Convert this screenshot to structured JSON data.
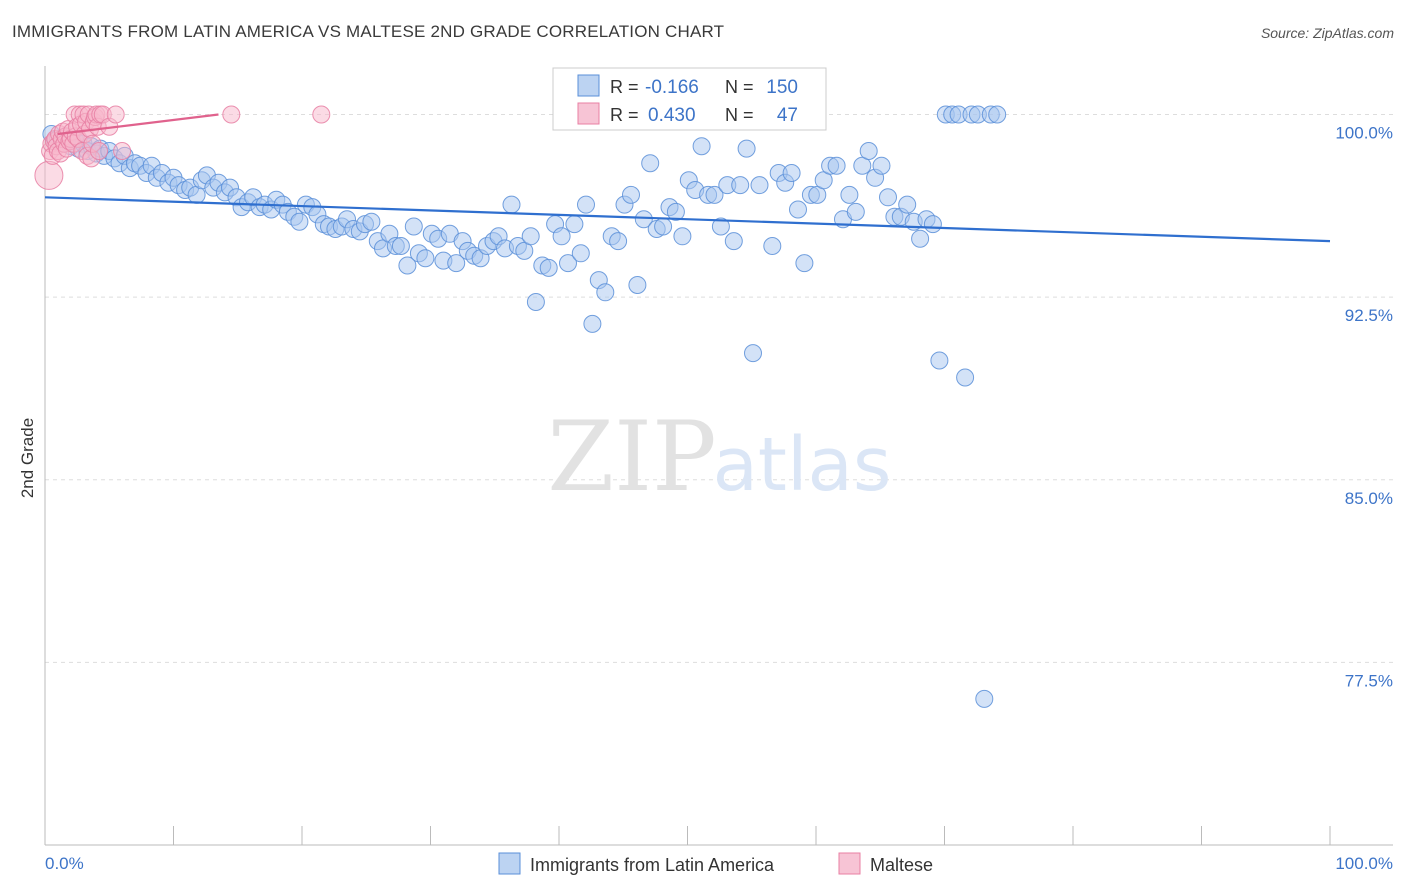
{
  "title": "IMMIGRANTS FROM LATIN AMERICA VS MALTESE 2ND GRADE CORRELATION CHART",
  "source": "Source: ZipAtlas.com",
  "watermark": {
    "zip": "ZIP",
    "atlas": "atlas"
  },
  "chart_data": {
    "type": "scatter",
    "title": "IMMIGRANTS FROM LATIN AMERICA VS MALTESE 2ND GRADE CORRELATION CHART",
    "xlabel": "",
    "ylabel": "2nd Grade",
    "xlim": [
      0,
      100
    ],
    "ylim": [
      70.0,
      101.5
    ],
    "x_tick_labels": [
      {
        "value": 0,
        "label": "0.0%"
      },
      {
        "value": 100,
        "label": "100.0%"
      }
    ],
    "y_tick_labels": [
      {
        "value": 100.0,
        "label": "100.0%"
      },
      {
        "value": 92.5,
        "label": "92.5%"
      },
      {
        "value": 85.0,
        "label": "85.0%"
      },
      {
        "value": 77.5,
        "label": "77.5%"
      }
    ],
    "grid": true,
    "legend_position": "bottom-center",
    "stats": [
      {
        "r_label": "R =",
        "r": "-0.166",
        "n_label": "N =",
        "n": "150"
      },
      {
        "r_label": "R =",
        "r": "0.430",
        "n_label": "N =",
        "n": "47"
      }
    ],
    "series": [
      {
        "name": "Immigrants from Latin America",
        "fill": "#a8c6ef",
        "stroke": "#5a8fd8",
        "line_color": "#2f6fcf",
        "trend": {
          "x": [
            0,
            100
          ],
          "y": [
            96.6,
            94.8
          ]
        },
        "points": [
          [
            0.5,
            99.2
          ],
          [
            0.8,
            98.9
          ],
          [
            1.0,
            99.0
          ],
          [
            1.3,
            98.8
          ],
          [
            1.6,
            99.1
          ],
          [
            2.0,
            98.7
          ],
          [
            2.3,
            99.0
          ],
          [
            2.6,
            98.6
          ],
          [
            3.0,
            98.8
          ],
          [
            3.3,
            98.5
          ],
          [
            3.6,
            98.7
          ],
          [
            4.0,
            98.4
          ],
          [
            4.3,
            98.6
          ],
          [
            4.6,
            98.3
          ],
          [
            5.0,
            98.5
          ],
          [
            5.4,
            98.2
          ],
          [
            5.8,
            98.0
          ],
          [
            6.2,
            98.3
          ],
          [
            6.6,
            97.8
          ],
          [
            7.0,
            98.0
          ],
          [
            7.4,
            97.9
          ],
          [
            7.9,
            97.6
          ],
          [
            8.3,
            97.9
          ],
          [
            8.7,
            97.4
          ],
          [
            9.1,
            97.6
          ],
          [
            9.6,
            97.2
          ],
          [
            10.0,
            97.4
          ],
          [
            10.4,
            97.1
          ],
          [
            10.9,
            96.9
          ],
          [
            11.3,
            97.0
          ],
          [
            11.8,
            96.7
          ],
          [
            12.2,
            97.3
          ],
          [
            12.6,
            97.5
          ],
          [
            13.1,
            97.0
          ],
          [
            13.5,
            97.2
          ],
          [
            14.0,
            96.8
          ],
          [
            14.4,
            97.0
          ],
          [
            14.9,
            96.6
          ],
          [
            15.3,
            96.2
          ],
          [
            15.8,
            96.4
          ],
          [
            16.2,
            96.6
          ],
          [
            16.7,
            96.2
          ],
          [
            17.1,
            96.3
          ],
          [
            17.6,
            96.1
          ],
          [
            18.0,
            96.5
          ],
          [
            18.5,
            96.3
          ],
          [
            18.9,
            96.0
          ],
          [
            19.4,
            95.8
          ],
          [
            19.8,
            95.6
          ],
          [
            20.3,
            96.3
          ],
          [
            20.8,
            96.2
          ],
          [
            21.2,
            95.9
          ],
          [
            21.7,
            95.5
          ],
          [
            22.1,
            95.4
          ],
          [
            22.6,
            95.3
          ],
          [
            23.1,
            95.4
          ],
          [
            23.5,
            95.7
          ],
          [
            24.0,
            95.3
          ],
          [
            24.5,
            95.2
          ],
          [
            24.9,
            95.5
          ],
          [
            25.4,
            95.6
          ],
          [
            25.9,
            94.8
          ],
          [
            26.3,
            94.5
          ],
          [
            26.8,
            95.1
          ],
          [
            27.3,
            94.6
          ],
          [
            27.7,
            94.6
          ],
          [
            28.2,
            93.8
          ],
          [
            28.7,
            95.4
          ],
          [
            29.1,
            94.3
          ],
          [
            29.6,
            94.1
          ],
          [
            30.1,
            95.1
          ],
          [
            30.6,
            94.9
          ],
          [
            31.0,
            94.0
          ],
          [
            31.5,
            95.1
          ],
          [
            32.0,
            93.9
          ],
          [
            32.5,
            94.8
          ],
          [
            32.9,
            94.4
          ],
          [
            33.4,
            94.2
          ],
          [
            33.9,
            94.1
          ],
          [
            34.4,
            94.6
          ],
          [
            34.9,
            94.8
          ],
          [
            35.3,
            95.0
          ],
          [
            35.8,
            94.5
          ],
          [
            36.3,
            96.3
          ],
          [
            36.8,
            94.6
          ],
          [
            37.3,
            94.4
          ],
          [
            37.8,
            95.0
          ],
          [
            38.2,
            92.3
          ],
          [
            38.7,
            93.8
          ],
          [
            39.2,
            93.7
          ],
          [
            39.7,
            95.5
          ],
          [
            40.2,
            95.0
          ],
          [
            40.7,
            93.9
          ],
          [
            41.2,
            95.5
          ],
          [
            41.7,
            94.3
          ],
          [
            42.1,
            96.3
          ],
          [
            42.6,
            91.4
          ],
          [
            43.1,
            93.2
          ],
          [
            43.6,
            92.7
          ],
          [
            44.1,
            95.0
          ],
          [
            44.6,
            94.8
          ],
          [
            45.1,
            96.3
          ],
          [
            45.6,
            96.7
          ],
          [
            46.1,
            93.0
          ],
          [
            46.6,
            95.7
          ],
          [
            47.1,
            98.0
          ],
          [
            47.6,
            95.3
          ],
          [
            48.1,
            95.4
          ],
          [
            48.6,
            96.2
          ],
          [
            49.1,
            96.0
          ],
          [
            49.6,
            95.0
          ],
          [
            50.1,
            97.3
          ],
          [
            50.6,
            96.9
          ],
          [
            51.1,
            98.7
          ],
          [
            51.6,
            96.7
          ],
          [
            52.1,
            96.7
          ],
          [
            52.6,
            95.4
          ],
          [
            53.1,
            97.1
          ],
          [
            53.6,
            94.8
          ],
          [
            54.1,
            97.1
          ],
          [
            54.6,
            98.6
          ],
          [
            55.1,
            90.2
          ],
          [
            55.6,
            97.1
          ],
          [
            56.1,
            99.8
          ],
          [
            56.6,
            94.6
          ],
          [
            57.1,
            97.6
          ],
          [
            57.6,
            97.2
          ],
          [
            58.1,
            97.6
          ],
          [
            58.6,
            96.1
          ],
          [
            59.1,
            93.9
          ],
          [
            59.6,
            96.7
          ],
          [
            60.1,
            96.7
          ],
          [
            60.6,
            97.3
          ],
          [
            61.1,
            97.9
          ],
          [
            61.6,
            97.9
          ],
          [
            62.1,
            95.7
          ],
          [
            62.6,
            96.7
          ],
          [
            63.1,
            96.0
          ],
          [
            63.6,
            97.9
          ],
          [
            64.1,
            98.5
          ],
          [
            64.6,
            97.4
          ],
          [
            65.1,
            97.9
          ],
          [
            65.6,
            96.6
          ],
          [
            66.1,
            95.8
          ],
          [
            66.6,
            95.8
          ],
          [
            67.1,
            96.3
          ],
          [
            67.6,
            95.6
          ],
          [
            68.1,
            94.9
          ],
          [
            68.6,
            95.7
          ],
          [
            69.1,
            95.5
          ],
          [
            69.6,
            89.9
          ],
          [
            70.1,
            100.0
          ],
          [
            70.6,
            100.0
          ],
          [
            71.1,
            100.0
          ],
          [
            71.6,
            89.2
          ],
          [
            72.1,
            100.0
          ],
          [
            72.6,
            100.0
          ],
          [
            73.1,
            76.0
          ],
          [
            73.6,
            100.0
          ],
          [
            74.1,
            100.0
          ]
        ]
      },
      {
        "name": "Maltese",
        "fill": "#f7b7cc",
        "stroke": "#e87fa3",
        "line_color": "#e0628d",
        "trend": {
          "x": [
            1.0,
            13.5
          ],
          "y": [
            99.2,
            100.0
          ]
        },
        "points": [
          [
            0.3,
            97.5
          ],
          [
            0.4,
            98.5
          ],
          [
            0.5,
            98.8
          ],
          [
            0.6,
            98.3
          ],
          [
            0.7,
            98.9
          ],
          [
            0.8,
            99.0
          ],
          [
            0.9,
            98.7
          ],
          [
            1.0,
            98.5
          ],
          [
            1.1,
            99.2
          ],
          [
            1.2,
            98.4
          ],
          [
            1.3,
            99.0
          ],
          [
            1.4,
            99.3
          ],
          [
            1.5,
            98.8
          ],
          [
            1.6,
            99.1
          ],
          [
            1.7,
            98.6
          ],
          [
            1.8,
            99.4
          ],
          [
            1.9,
            98.9
          ],
          [
            2.0,
            99.0
          ],
          [
            2.1,
            99.3
          ],
          [
            2.2,
            98.8
          ],
          [
            2.3,
            100.0
          ],
          [
            2.4,
            99.1
          ],
          [
            2.5,
            99.5
          ],
          [
            2.6,
            99.0
          ],
          [
            2.7,
            100.0
          ],
          [
            2.8,
            99.6
          ],
          [
            2.9,
            98.5
          ],
          [
            3.0,
            100.0
          ],
          [
            3.1,
            99.2
          ],
          [
            3.2,
            99.7
          ],
          [
            3.3,
            98.3
          ],
          [
            3.4,
            100.0
          ],
          [
            3.5,
            99.4
          ],
          [
            3.6,
            98.2
          ],
          [
            3.7,
            98.8
          ],
          [
            3.8,
            99.7
          ],
          [
            3.9,
            99.9
          ],
          [
            4.0,
            100.0
          ],
          [
            4.1,
            99.5
          ],
          [
            4.2,
            98.5
          ],
          [
            4.3,
            100.0
          ],
          [
            4.5,
            100.0
          ],
          [
            5.0,
            99.5
          ],
          [
            5.5,
            100.0
          ],
          [
            6.0,
            98.5
          ],
          [
            14.5,
            100.0
          ],
          [
            21.5,
            100.0
          ]
        ]
      }
    ]
  }
}
